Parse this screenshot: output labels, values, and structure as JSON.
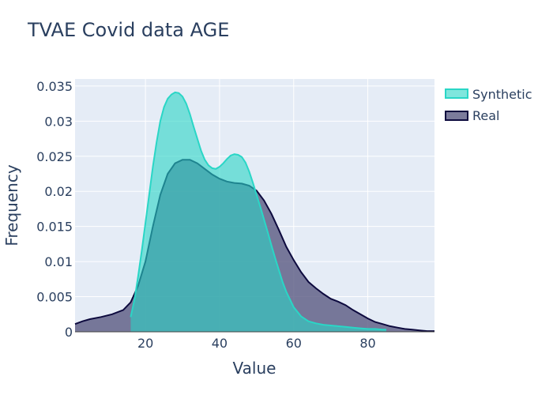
{
  "chart_data": {
    "type": "area",
    "title": "TVAE Covid data AGE",
    "xlabel": "Value",
    "ylabel": "Frequency",
    "xlim": [
      1,
      98
    ],
    "ylim": [
      0,
      0.036
    ],
    "x_ticks": [
      20,
      40,
      60,
      80
    ],
    "x_tick_labels": [
      "20",
      "40",
      "60",
      "80"
    ],
    "y_ticks": [
      0,
      0.005,
      0.01,
      0.015,
      0.02,
      0.025,
      0.03,
      0.035
    ],
    "y_tick_labels": [
      "0",
      "0.005",
      "0.01",
      "0.015",
      "0.02",
      "0.025",
      "0.03",
      "0.035"
    ],
    "grid": true,
    "legend_position": "top-right",
    "series": [
      {
        "name": "Real",
        "fill": "#5a5a82",
        "line": "#0d0a3e",
        "x": [
          1,
          3,
          5,
          8,
          11,
          14,
          16,
          18,
          20,
          22,
          24,
          26,
          28,
          30,
          32,
          34,
          36,
          38,
          40,
          42,
          44,
          46,
          48,
          50,
          52,
          54,
          56,
          58,
          60,
          62,
          64,
          66,
          68,
          70,
          72,
          74,
          76,
          78,
          80,
          82,
          84,
          86,
          88,
          90,
          92,
          94,
          96,
          98
        ],
        "y": [
          0.0011,
          0.0015,
          0.0018,
          0.0021,
          0.0025,
          0.0031,
          0.0042,
          0.0065,
          0.01,
          0.015,
          0.0195,
          0.0225,
          0.024,
          0.0245,
          0.0245,
          0.024,
          0.0232,
          0.0224,
          0.0218,
          0.0214,
          0.0212,
          0.0211,
          0.0208,
          0.0201,
          0.0187,
          0.0168,
          0.0145,
          0.0121,
          0.0102,
          0.0085,
          0.0071,
          0.0062,
          0.0054,
          0.0047,
          0.0043,
          0.0038,
          0.0031,
          0.0025,
          0.0019,
          0.0014,
          0.0011,
          0.0008,
          0.0006,
          0.0004,
          0.0003,
          0.0002,
          0.0001,
          0.0001
        ]
      },
      {
        "name": "Synthetic",
        "fill": "#2ad6c6",
        "line": "#2ad6c6",
        "x": [
          16,
          17,
          18,
          19,
          20,
          21,
          22,
          23,
          24,
          25,
          26,
          27,
          28,
          29,
          30,
          31,
          32,
          33,
          34,
          35,
          36,
          37,
          38,
          39,
          40,
          41,
          42,
          43,
          44,
          45,
          46,
          47,
          48,
          49,
          50,
          51,
          52,
          53,
          54,
          55,
          56,
          57,
          58,
          60,
          62,
          64,
          66,
          68,
          70,
          72,
          74,
          76,
          78,
          80,
          82,
          84,
          85
        ],
        "y": [
          0.0021,
          0.0045,
          0.0078,
          0.0115,
          0.0155,
          0.0195,
          0.0235,
          0.027,
          0.03,
          0.032,
          0.0332,
          0.0338,
          0.0341,
          0.034,
          0.0335,
          0.0325,
          0.031,
          0.0292,
          0.0275,
          0.0258,
          0.0245,
          0.0237,
          0.0233,
          0.0232,
          0.0235,
          0.024,
          0.0246,
          0.0251,
          0.0253,
          0.0252,
          0.0249,
          0.0241,
          0.0228,
          0.0212,
          0.0195,
          0.0178,
          0.016,
          0.0142,
          0.0123,
          0.0105,
          0.0088,
          0.0071,
          0.0057,
          0.0035,
          0.0022,
          0.0015,
          0.0012,
          0.001,
          0.0009,
          0.0008,
          0.0007,
          0.0006,
          0.0005,
          0.0004,
          0.0004,
          0.0003,
          0.0003
        ]
      }
    ]
  }
}
